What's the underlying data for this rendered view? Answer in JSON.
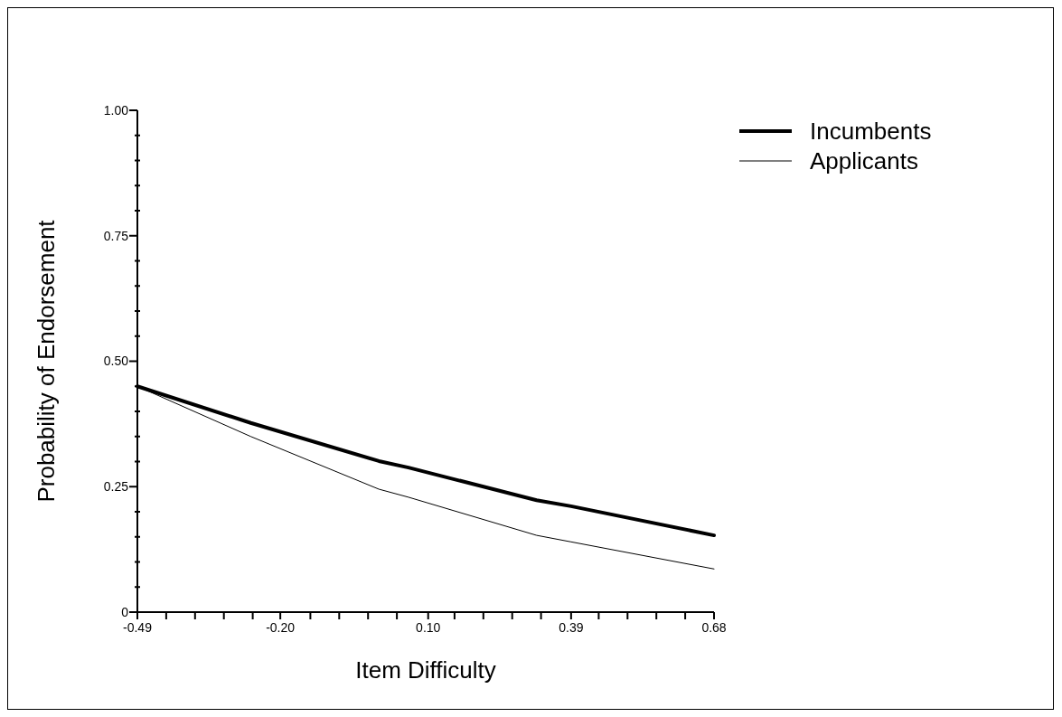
{
  "chart_data": {
    "type": "line",
    "xlabel": "Item Difficulty",
    "ylabel": "Probability of Endorsement",
    "xlim": [
      -0.49,
      0.68
    ],
    "ylim": [
      0,
      1
    ],
    "xticks": [
      {
        "value": -0.49,
        "label": "-0.49"
      },
      {
        "value": -0.4315,
        "label": null
      },
      {
        "value": -0.373,
        "label": null
      },
      {
        "value": -0.3145,
        "label": null
      },
      {
        "value": -0.256,
        "label": null
      },
      {
        "value": -0.2,
        "label": "-0.20"
      },
      {
        "value": -0.139,
        "label": null
      },
      {
        "value": -0.0805,
        "label": null
      },
      {
        "value": -0.022,
        "label": null
      },
      {
        "value": 0.0365,
        "label": null
      },
      {
        "value": 0.1,
        "label": "0.10"
      },
      {
        "value": 0.1535,
        "label": null
      },
      {
        "value": 0.212,
        "label": null
      },
      {
        "value": 0.2705,
        "label": null
      },
      {
        "value": 0.329,
        "label": null
      },
      {
        "value": 0.39,
        "label": "0.39"
      },
      {
        "value": 0.446,
        "label": null
      },
      {
        "value": 0.5045,
        "label": null
      },
      {
        "value": 0.563,
        "label": null
      },
      {
        "value": 0.6215,
        "label": null
      },
      {
        "value": 0.68,
        "label": "0.68"
      }
    ],
    "yticks": [
      {
        "value": 0,
        "label": "0"
      },
      {
        "value": 0.05,
        "label": null
      },
      {
        "value": 0.1,
        "label": null
      },
      {
        "value": 0.15,
        "label": null
      },
      {
        "value": 0.2,
        "label": null
      },
      {
        "value": 0.25,
        "label": "0.25"
      },
      {
        "value": 0.3,
        "label": null
      },
      {
        "value": 0.35,
        "label": null
      },
      {
        "value": 0.4,
        "label": null
      },
      {
        "value": 0.45,
        "label": null
      },
      {
        "value": 0.5,
        "label": "0.50"
      },
      {
        "value": 0.55,
        "label": null
      },
      {
        "value": 0.6,
        "label": null
      },
      {
        "value": 0.65,
        "label": null
      },
      {
        "value": 0.7,
        "label": null
      },
      {
        "value": 0.75,
        "label": "0.75"
      },
      {
        "value": 0.8,
        "label": null
      },
      {
        "value": 0.85,
        "label": null
      },
      {
        "value": 0.9,
        "label": null
      },
      {
        "value": 0.95,
        "label": null
      },
      {
        "value": 1,
        "label": "1.00"
      }
    ],
    "legend": "top right",
    "line_style": "solid",
    "marker": "none",
    "series": [
      {
        "name": "Incumbents",
        "color": "#000000",
        "x": [
          -0.49,
          -0.26,
          0.0,
          0.06,
          0.32,
          0.39,
          0.68
        ],
        "values": [
          0.45,
          0.377,
          0.301,
          0.288,
          0.223,
          0.211,
          0.153
        ]
      },
      {
        "name": "Applicants",
        "color": "#000000",
        "x": [
          -0.49,
          -0.26,
          0.0,
          0.06,
          0.32,
          0.39,
          0.68
        ],
        "values": [
          0.45,
          0.35,
          0.245,
          0.229,
          0.153,
          0.14,
          0.086
        ]
      }
    ]
  }
}
